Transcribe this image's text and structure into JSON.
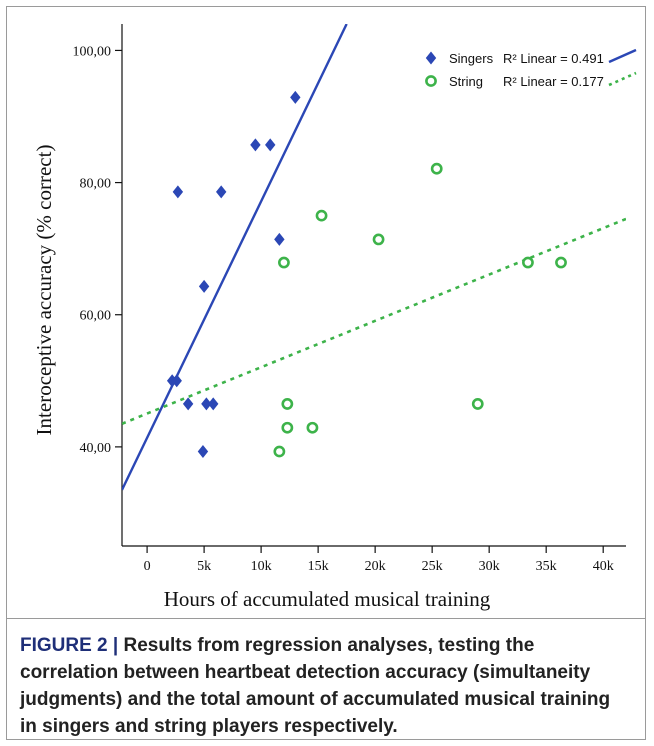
{
  "chart_data": {
    "type": "scatter",
    "title": "",
    "xlabel": "Hours of accumulated musical training",
    "ylabel": "Interoceptive accuracy  (% correct)",
    "xlim": [
      -2200,
      42000
    ],
    "ylim": [
      25,
      104
    ],
    "x_ticks": [
      0,
      5000,
      10000,
      15000,
      20000,
      25000,
      30000,
      35000,
      40000
    ],
    "x_tick_labels": [
      "0",
      "5k",
      "10k",
      "15k",
      "20k",
      "25k",
      "30k",
      "35k",
      "40k"
    ],
    "y_ticks": [
      40,
      60,
      80,
      100
    ],
    "y_tick_labels": [
      "40,00",
      "60,00",
      "80,00",
      "100,00"
    ],
    "grid": false,
    "legend_position": "top-right",
    "series": [
      {
        "name": "Singers",
        "marker": "diamond",
        "color": "#2b47b5",
        "fit_label": "R² Linear = 0.491",
        "fit_line": [
          [
            -2200,
            33.5
          ],
          [
            17500,
            104
          ]
        ],
        "fit_style": "solid",
        "points": [
          [
            2200,
            50
          ],
          [
            2600,
            50
          ],
          [
            2700,
            78.6
          ],
          [
            3600,
            46.5
          ],
          [
            4900,
            39.3
          ],
          [
            5000,
            64.3
          ],
          [
            5200,
            46.5
          ],
          [
            5800,
            46.5
          ],
          [
            6500,
            78.6
          ],
          [
            9500,
            85.7
          ],
          [
            10800,
            85.7
          ],
          [
            11600,
            71.4
          ],
          [
            13000,
            92.9
          ]
        ]
      },
      {
        "name": "String",
        "marker": "open-circle",
        "color": "#3db34a",
        "fit_label": "R² Linear = 0.177",
        "fit_line": [
          [
            -2200,
            43.5
          ],
          [
            42000,
            74.5
          ]
        ],
        "fit_style": "dotted",
        "points": [
          [
            11600,
            39.3
          ],
          [
            12000,
            67.9
          ],
          [
            12300,
            46.5
          ],
          [
            12300,
            42.9
          ],
          [
            14500,
            42.9
          ],
          [
            15300,
            75
          ],
          [
            20300,
            71.4
          ],
          [
            25400,
            82.1
          ],
          [
            29000,
            46.5
          ],
          [
            33400,
            67.9
          ],
          [
            36300,
            67.9
          ]
        ]
      }
    ]
  },
  "caption": {
    "label": "FIGURE 2 |",
    "text": " Results from regression analyses, testing the correlation between heartbeat detection accuracy (simultaneity judgments) and the total amount of accumulated musical training in singers and string players respectively."
  }
}
